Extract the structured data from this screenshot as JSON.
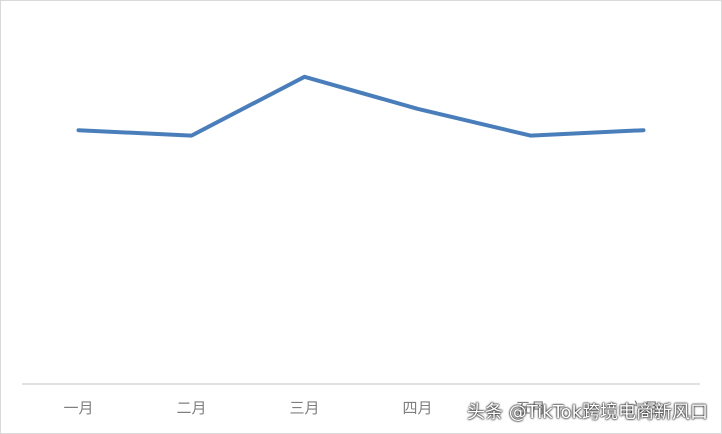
{
  "chart_data": {
    "type": "line",
    "categories": [
      "一月",
      "二月",
      "三月",
      "四月",
      "五月",
      "六月"
    ],
    "series": [
      {
        "values": [
          47.5,
          46.5,
          57.5,
          51.5,
          46.5,
          47.5
        ],
        "color": "#4a7ebb"
      }
    ],
    "ylim": [
      0,
      70
    ],
    "grid": false,
    "legend": "none"
  },
  "watermark": "头条 @TikTok跨境电商新风口"
}
